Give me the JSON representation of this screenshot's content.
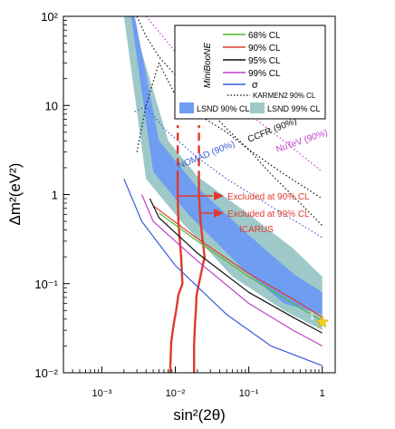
{
  "chart_data": {
    "type": "line",
    "xlabel": "sin²(2θ)",
    "ylabel": "Δm²(eV²)",
    "xscale": "log",
    "yscale": "log",
    "xlim": [
      0.0003,
      1.5
    ],
    "ylim": [
      0.01,
      100
    ],
    "x_ticks": [
      {
        "value": 0.001,
        "label": "10⁻³"
      },
      {
        "value": 0.01,
        "label": "10⁻²"
      },
      {
        "value": 0.1,
        "label": "10⁻¹"
      },
      {
        "value": 1,
        "label": "1"
      }
    ],
    "y_ticks": [
      {
        "value": 0.01,
        "label": "10⁻²"
      },
      {
        "value": 0.1,
        "label": "10⁻¹"
      },
      {
        "value": 1,
        "label": "1"
      },
      {
        "value": 10,
        "label": "10"
      },
      {
        "value": 100,
        "label": "10²"
      }
    ],
    "legend": {
      "position": "top-right",
      "group_label": "MiniBooNE",
      "entries": [
        {
          "label": "68% CL",
          "color": "#4dbb2f",
          "style": "solid"
        },
        {
          "label": "90% CL",
          "color": "#e03a2f",
          "style": "solid"
        },
        {
          "label": "95% CL",
          "color": "#111111",
          "style": "solid"
        },
        {
          "label": "99% CL",
          "color": "#c43fc8",
          "style": "solid"
        },
        {
          "label": "σ",
          "color": "#3b5bd6",
          "style": "solid"
        },
        {
          "label": "KARMEN2 90% CL",
          "color": "#111111",
          "style": "dotted"
        },
        {
          "label": "LSND 90% CL",
          "color": "#6e9df2",
          "style": "fill"
        },
        {
          "label": "LSND 99% CL",
          "color": "#9fc9c9",
          "style": "fill"
        }
      ]
    },
    "annotations": [
      {
        "text": "NuTeV (90%)",
        "color": "#c43fc8"
      },
      {
        "text": "CCFR (90%)",
        "color": "#111111"
      },
      {
        "text": "NOMAD (90%)",
        "color": "#3b5bd6"
      },
      {
        "text": "Excluded at 90% CL",
        "color": "#e03a2f"
      },
      {
        "text": "Excluded at 99% CL",
        "color": "#e03a2f"
      },
      {
        "text": "ICARUS",
        "color": "#e03a2f"
      }
    ],
    "best_fit": {
      "x": 1.0,
      "y": 0.037,
      "marker": "star",
      "color": "#f2d21b",
      "label": "1"
    },
    "series": [
      {
        "name": "KARMEN2 90% CL",
        "color": "#111111",
        "style": "dotted",
        "x": [
          0.003,
          0.004,
          0.006,
          0.01,
          0.02,
          0.05,
          0.1,
          0.2,
          0.5,
          1.0
        ],
        "y": [
          100,
          60,
          35,
          22,
          12,
          5.5,
          3.2,
          1.7,
          0.8,
          0.45
        ]
      },
      {
        "name": "NuTeV (90%)",
        "color": "#c43fc8",
        "style": "dotted",
        "x": [
          0.004,
          0.01,
          0.03,
          0.1,
          0.3,
          1.0
        ],
        "y": [
          100,
          40,
          18,
          8,
          4,
          1.8
        ]
      },
      {
        "name": "CCFR (90%)",
        "color": "#111111",
        "style": "dotted",
        "x": [
          0.003,
          0.004,
          0.006,
          0.01,
          0.02,
          0.05,
          0.1,
          0.3,
          1.0
        ],
        "y": [
          3,
          10,
          30,
          13,
          8,
          5,
          3.2,
          1.7,
          0.9
        ]
      },
      {
        "name": "NOMAD (90%)",
        "color": "#3b5bd6",
        "style": "dotted",
        "x": [
          0.0028,
          0.004,
          0.007,
          0.02,
          0.05,
          0.1,
          0.3,
          1.0
        ],
        "y": [
          8.5,
          9.8,
          5.5,
          2.6,
          1.5,
          1.05,
          0.6,
          0.33
        ]
      },
      {
        "name": "ICARUS 90% CL",
        "color": "#e03a2f",
        "style": "solid",
        "x": [
          0.0085,
          0.0088,
          0.0095,
          0.0102,
          0.011,
          0.0125,
          0.012,
          0.011,
          0.0108,
          0.0108
        ],
        "y": [
          0.01,
          0.022,
          0.035,
          0.048,
          0.075,
          0.1,
          0.2,
          0.5,
          1.0,
          1.5
        ]
      },
      {
        "name": "ICARUS 90% CL (extension)",
        "color": "#e03a2f",
        "style": "dashed",
        "x": [
          0.0108,
          0.0108
        ],
        "y": [
          1.5,
          6
        ]
      },
      {
        "name": "ICARUS 99% CL",
        "color": "#e03a2f",
        "style": "solid",
        "x": [
          0.018,
          0.018,
          0.0185,
          0.019,
          0.0195,
          0.021,
          0.025,
          0.022,
          0.021,
          0.021
        ],
        "y": [
          0.01,
          0.02,
          0.035,
          0.048,
          0.075,
          0.1,
          0.2,
          0.5,
          1.0,
          1.5
        ]
      },
      {
        "name": "ICARUS 99% CL (extension)",
        "color": "#e03a2f",
        "style": "dashed",
        "x": [
          0.021,
          0.021
        ],
        "y": [
          1.5,
          6
        ]
      },
      {
        "name": "68% CL",
        "color": "#4dbb2f",
        "style": "solid",
        "x": [
          0.006,
          0.02,
          0.1,
          0.4,
          1.0
        ],
        "y": [
          0.62,
          0.3,
          0.12,
          0.06,
          0.038
        ]
      },
      {
        "name": "90% CL",
        "color": "#e03a2f",
        "style": "solid",
        "x": [
          0.005,
          0.02,
          0.1,
          0.4,
          1.0
        ],
        "y": [
          0.75,
          0.32,
          0.13,
          0.067,
          0.042
        ]
      },
      {
        "name": "95% CL",
        "color": "#111111",
        "style": "solid",
        "x": [
          0.0045,
          0.006,
          0.02,
          0.1,
          0.4,
          1.0
        ],
        "y": [
          0.9,
          0.55,
          0.22,
          0.08,
          0.042,
          0.028
        ]
      },
      {
        "name": "99% CL",
        "color": "#c43fc8",
        "style": "solid",
        "x": [
          0.0035,
          0.005,
          0.02,
          0.1,
          0.4,
          1.0
        ],
        "y": [
          1.0,
          0.5,
          0.18,
          0.06,
          0.03,
          0.02
        ]
      },
      {
        "name": "σ (inner)",
        "color": "#3b5bd6",
        "style": "solid",
        "x": [
          0.002,
          0.0035,
          0.01,
          0.05,
          0.2,
          1.0
        ],
        "y": [
          1.5,
          0.5,
          0.16,
          0.045,
          0.02,
          0.012
        ]
      }
    ],
    "bands": [
      {
        "name": "LSND 99% CL",
        "color": "#9fc9c9",
        "upper_x": [
          0.0025,
          0.008,
          0.02,
          0.1,
          0.4,
          1.0
        ],
        "upper_y": [
          100,
          4,
          1.6,
          0.6,
          0.25,
          0.12
        ],
        "lower_x": [
          0.002,
          0.004,
          0.012,
          0.06,
          0.3,
          1.0
        ],
        "lower_y": [
          100,
          1.5,
          0.5,
          0.12,
          0.05,
          0.03
        ]
      },
      {
        "name": "LSND 90% CL",
        "color": "#6e9df2",
        "upper_x": [
          0.0028,
          0.006,
          0.02,
          0.1,
          0.4,
          1.0
        ],
        "upper_y": [
          100,
          4,
          1.2,
          0.35,
          0.13,
          0.08
        ],
        "lower_x": [
          0.0025,
          0.005,
          0.015,
          0.08,
          0.3,
          1.0
        ],
        "lower_y": [
          100,
          1.8,
          0.6,
          0.15,
          0.06,
          0.045
        ]
      }
    ]
  }
}
